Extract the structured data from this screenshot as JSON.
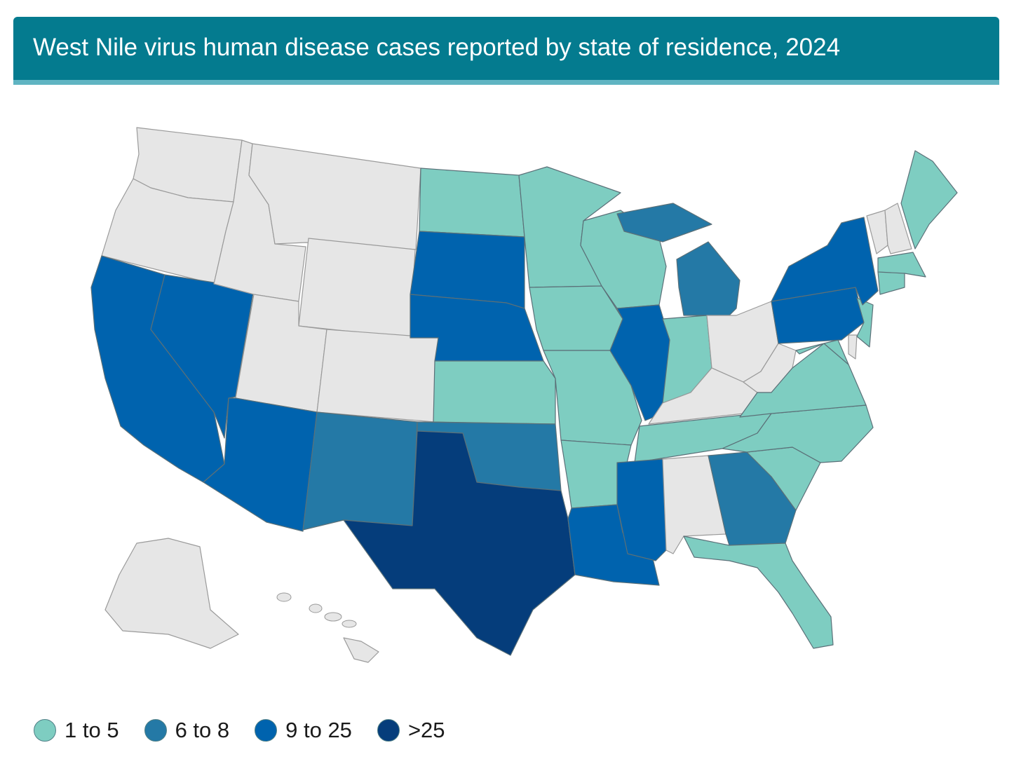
{
  "title": "West Nile virus human disease cases reported by state of residence, 2024",
  "colors": {
    "header_bg": "#047b8f",
    "header_stripe": "#5fb4c2",
    "no_cases": "#e6e6e6",
    "cat_1_5": "#7ecdc1",
    "cat_6_8": "#2479a6",
    "cat_9_25": "#0063ae",
    "cat_gt25": "#053d7b",
    "border": "#8a8a8a"
  },
  "legend": [
    {
      "label": "1 to 5",
      "color": "#7ecdc1"
    },
    {
      "label": "6 to 8",
      "color": "#2479a6"
    },
    {
      "label": "9 to 25",
      "color": "#0063ae"
    },
    {
      "label": ">25",
      "color": "#053d7b"
    }
  ],
  "map_data": {
    "WA": "none",
    "OR": "none",
    "ID": "none",
    "MT": "none",
    "WY": "none",
    "UT": "none",
    "CO": "none",
    "OH": "none",
    "WV": "none",
    "KY": "none",
    "AL": "none",
    "VT": "none",
    "NH": "none",
    "DE": "none",
    "AK": "none",
    "HI": "none",
    "ND": "1 to 5",
    "MN": "1 to 5",
    "WI": "1 to 5",
    "IA": "1 to 5",
    "KS": "1 to 5",
    "MO": "1 to 5",
    "AR": "1 to 5",
    "IN": "1 to 5",
    "TN": "1 to 5",
    "VA": "1 to 5",
    "NC": "1 to 5",
    "SC": "1 to 5",
    "FL": "1 to 5",
    "ME": "1 to 5",
    "MA": "1 to 5",
    "CT": "1 to 5",
    "NJ": "1 to 5",
    "MD": "1 to 5",
    "NM": "6 to 8",
    "OK": "6 to 8",
    "MI": "6 to 8",
    "GA": "6 to 8",
    "CA": "9 to 25",
    "NV": "9 to 25",
    "AZ": "9 to 25",
    "SD": "9 to 25",
    "NE": "9 to 25",
    "IL": "9 to 25",
    "LA": "9 to 25",
    "MS": "9 to 25",
    "PA": "9 to 25",
    "NY": "9 to 25",
    "TX": ">25"
  }
}
